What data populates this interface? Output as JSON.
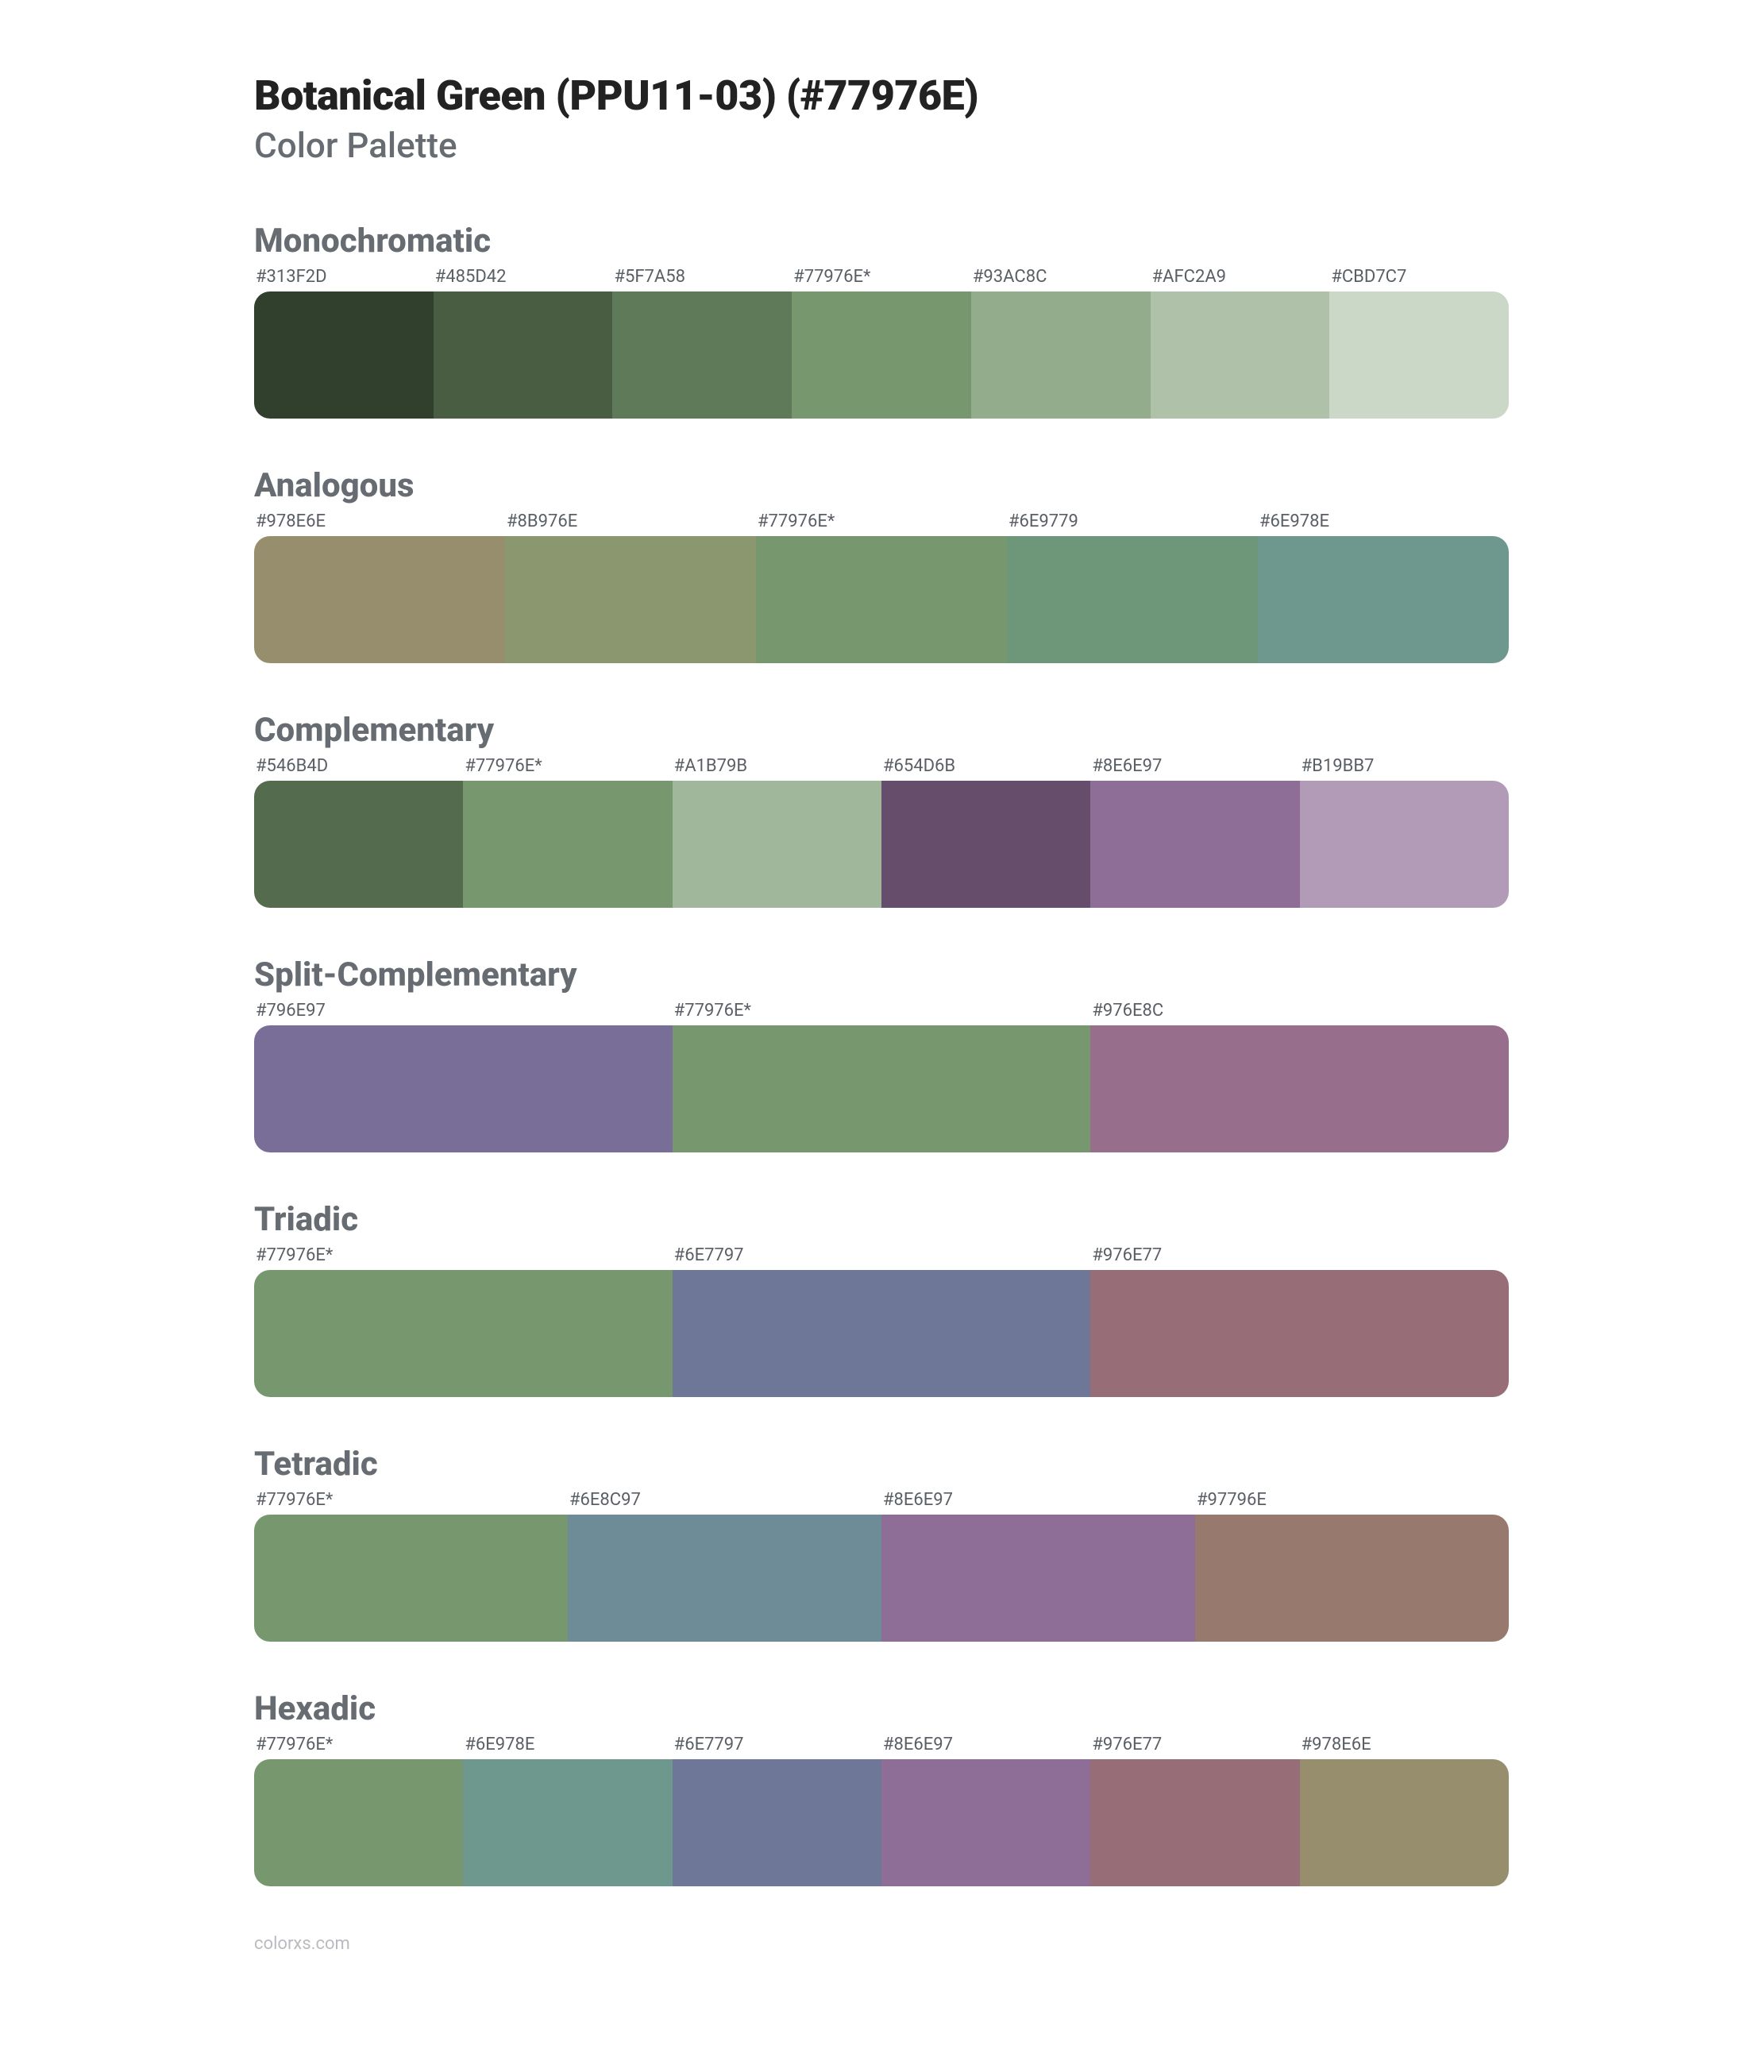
{
  "title": "Botanical Green (PPU11-03) (#77976E)",
  "subtitle": "Color Palette",
  "footer": "colorxs.com",
  "swatch_height": 160,
  "schemes": [
    {
      "name": "Monochromatic",
      "swatches": [
        {
          "label": "#313F2D",
          "color": "#313F2D"
        },
        {
          "label": "#485D42",
          "color": "#485D42"
        },
        {
          "label": "#5F7A58",
          "color": "#5F7A58"
        },
        {
          "label": "#77976E*",
          "color": "#77976E"
        },
        {
          "label": "#93AC8C",
          "color": "#93AC8C"
        },
        {
          "label": "#AFC2A9",
          "color": "#AFC2A9"
        },
        {
          "label": "#CBD7C7",
          "color": "#CBD7C7"
        }
      ]
    },
    {
      "name": "Analogous",
      "swatches": [
        {
          "label": "#978E6E",
          "color": "#978E6E"
        },
        {
          "label": "#8B976E",
          "color": "#8B976E"
        },
        {
          "label": "#77976E*",
          "color": "#77976E"
        },
        {
          "label": "#6E9779",
          "color": "#6E9779"
        },
        {
          "label": "#6E978E",
          "color": "#6E978E"
        }
      ]
    },
    {
      "name": "Complementary",
      "swatches": [
        {
          "label": "#546B4D",
          "color": "#546B4D"
        },
        {
          "label": "#77976E*",
          "color": "#77976E"
        },
        {
          "label": "#A1B79B",
          "color": "#A1B79B"
        },
        {
          "label": "#654D6B",
          "color": "#654D6B"
        },
        {
          "label": "#8E6E97",
          "color": "#8E6E97"
        },
        {
          "label": "#B19BB7",
          "color": "#B19BB7"
        }
      ]
    },
    {
      "name": "Split-Complementary",
      "swatches": [
        {
          "label": "#796E97",
          "color": "#796E97"
        },
        {
          "label": "#77976E*",
          "color": "#77976E"
        },
        {
          "label": "#976E8C",
          "color": "#976E8C"
        }
      ]
    },
    {
      "name": "Triadic",
      "swatches": [
        {
          "label": "#77976E*",
          "color": "#77976E"
        },
        {
          "label": "#6E7797",
          "color": "#6E7797"
        },
        {
          "label": "#976E77",
          "color": "#976E77"
        }
      ]
    },
    {
      "name": "Tetradic",
      "swatches": [
        {
          "label": "#77976E*",
          "color": "#77976E"
        },
        {
          "label": "#6E8C97",
          "color": "#6E8C97"
        },
        {
          "label": "#8E6E97",
          "color": "#8E6E97"
        },
        {
          "label": "#97796E",
          "color": "#97796E"
        }
      ]
    },
    {
      "name": "Hexadic",
      "swatches": [
        {
          "label": "#77976E*",
          "color": "#77976E"
        },
        {
          "label": "#6E978E",
          "color": "#6E978E"
        },
        {
          "label": "#6E7797",
          "color": "#6E7797"
        },
        {
          "label": "#8E6E97",
          "color": "#8E6E97"
        },
        {
          "label": "#976E77",
          "color": "#976E77"
        },
        {
          "label": "#978E6E",
          "color": "#978E6E"
        }
      ]
    }
  ]
}
